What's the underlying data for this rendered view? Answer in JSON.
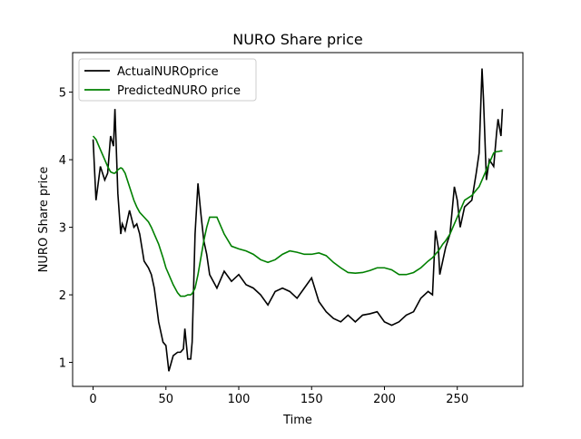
{
  "chart_data": {
    "type": "line",
    "title": "NURO Share price",
    "x_label": "Time",
    "y_label": "NURO Share price",
    "x": [
      0,
      2,
      5,
      8,
      10,
      12,
      14,
      15,
      17,
      19,
      20,
      22,
      25,
      28,
      30,
      32,
      35,
      38,
      40,
      42,
      45,
      48,
      50,
      52,
      55,
      58,
      60,
      62,
      63,
      65,
      67,
      68,
      70,
      72,
      74,
      76,
      78,
      80,
      85,
      90,
      95,
      100,
      105,
      110,
      115,
      120,
      125,
      130,
      135,
      140,
      145,
      150,
      155,
      160,
      165,
      170,
      175,
      180,
      185,
      190,
      195,
      200,
      205,
      210,
      215,
      220,
      225,
      230,
      233,
      235,
      237,
      238,
      240,
      242,
      245,
      248,
      250,
      252,
      255,
      260,
      263,
      265,
      267,
      268,
      270,
      272,
      275,
      277,
      278,
      280,
      281
    ],
    "series": [
      {
        "name": "ActualNUROprice",
        "color": "#000000",
        "values": [
          4.3,
          3.4,
          3.9,
          3.7,
          3.8,
          4.35,
          4.2,
          4.75,
          3.5,
          2.9,
          3.05,
          2.95,
          3.25,
          3.0,
          3.05,
          2.9,
          2.5,
          2.4,
          2.3,
          2.1,
          1.6,
          1.3,
          1.25,
          0.87,
          1.1,
          1.15,
          1.15,
          1.2,
          1.5,
          1.05,
          1.05,
          1.3,
          2.9,
          3.65,
          3.2,
          2.8,
          2.6,
          2.3,
          2.1,
          2.35,
          2.2,
          2.3,
          2.15,
          2.1,
          2.0,
          1.85,
          2.05,
          2.1,
          2.05,
          1.95,
          2.1,
          2.25,
          1.9,
          1.75,
          1.65,
          1.6,
          1.7,
          1.6,
          1.7,
          1.72,
          1.75,
          1.6,
          1.55,
          1.6,
          1.7,
          1.75,
          1.95,
          2.05,
          2.0,
          2.95,
          2.7,
          2.3,
          2.5,
          2.7,
          2.9,
          3.6,
          3.4,
          3.0,
          3.3,
          3.4,
          3.8,
          4.1,
          5.35,
          4.9,
          3.7,
          4.0,
          3.9,
          4.4,
          4.6,
          4.35,
          4.75
        ]
      },
      {
        "name": "PredictedNURO price",
        "color": "#008000",
        "values": [
          4.35,
          4.3,
          4.15,
          4.0,
          3.9,
          3.82,
          3.8,
          3.8,
          3.85,
          3.88,
          3.87,
          3.8,
          3.6,
          3.4,
          3.3,
          3.22,
          3.15,
          3.08,
          3.0,
          2.9,
          2.75,
          2.55,
          2.4,
          2.3,
          2.15,
          2.03,
          1.98,
          1.98,
          1.98,
          2.0,
          2.0,
          2.02,
          2.1,
          2.3,
          2.55,
          2.8,
          3.0,
          3.15,
          3.15,
          2.9,
          2.72,
          2.68,
          2.65,
          2.6,
          2.52,
          2.48,
          2.52,
          2.6,
          2.65,
          2.63,
          2.6,
          2.6,
          2.62,
          2.58,
          2.48,
          2.4,
          2.33,
          2.32,
          2.33,
          2.36,
          2.4,
          2.4,
          2.37,
          2.3,
          2.3,
          2.33,
          2.4,
          2.5,
          2.55,
          2.6,
          2.65,
          2.68,
          2.75,
          2.8,
          2.9,
          3.05,
          3.15,
          3.25,
          3.4,
          3.47,
          3.55,
          3.6,
          3.7,
          3.75,
          3.85,
          3.95,
          4.1,
          4.12,
          4.12,
          4.13,
          4.13
        ]
      }
    ],
    "xlim": [
      -14.05,
      295.05
    ],
    "xticks": [
      0,
      50,
      100,
      150,
      200,
      250
    ],
    "ylim": [
      0.645,
      5.585
    ],
    "yticks": [
      1,
      2,
      3,
      4,
      5
    ],
    "grid": false,
    "legend": "upper left"
  }
}
